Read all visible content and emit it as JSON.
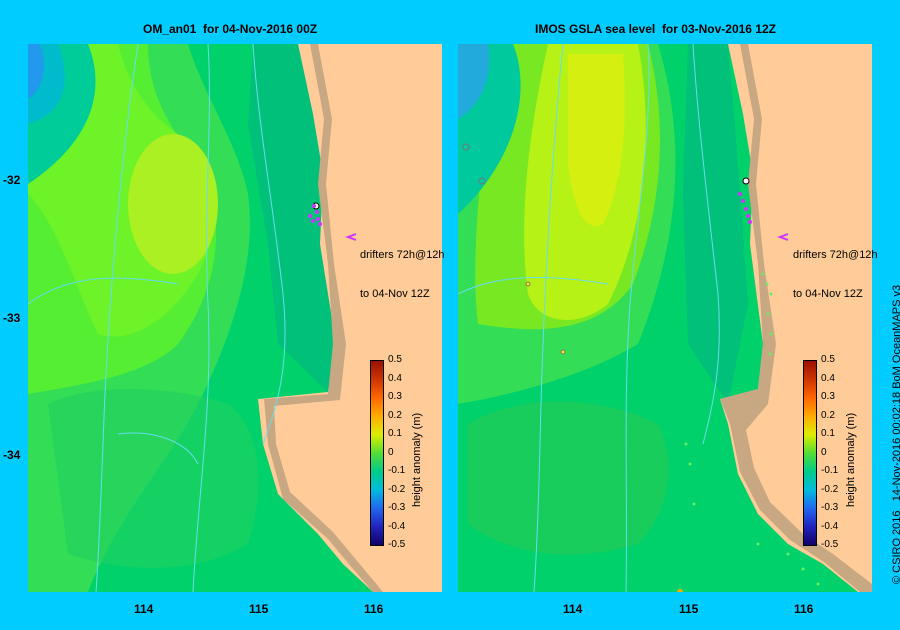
{
  "left_panel": {
    "title": "OM_an01  for 04-Nov-2016 00Z",
    "drifter_line1": "drifters 72h@12h",
    "drifter_line2": "to 04-Nov 12Z"
  },
  "right_panel": {
    "title": "IMOS GSLA sea level  for 03-Nov-2016 12Z",
    "drifter_line1": "drifters 72h@12h",
    "drifter_line2": "to 04-Nov 12Z"
  },
  "y_ticks": [
    "-32",
    "-33",
    "-34"
  ],
  "x_ticks": [
    "114",
    "115",
    "116"
  ],
  "colorbar": {
    "title": "height anomaly (m)",
    "labels": [
      "0.5",
      "0.4",
      "0.3",
      "0.2",
      "0.1",
      "0",
      "-0.1",
      "-0.2",
      "-0.3",
      "-0.4",
      "-0.5"
    ]
  },
  "credit": "© CSIRO 2016   14-Nov-2016 00:02:18 BoM OceanMAPS v3",
  "colors": {
    "background": "#00ccff",
    "land": "#ffcc99",
    "shelf": "#c8a882",
    "drifter": "#cc33ff"
  }
}
